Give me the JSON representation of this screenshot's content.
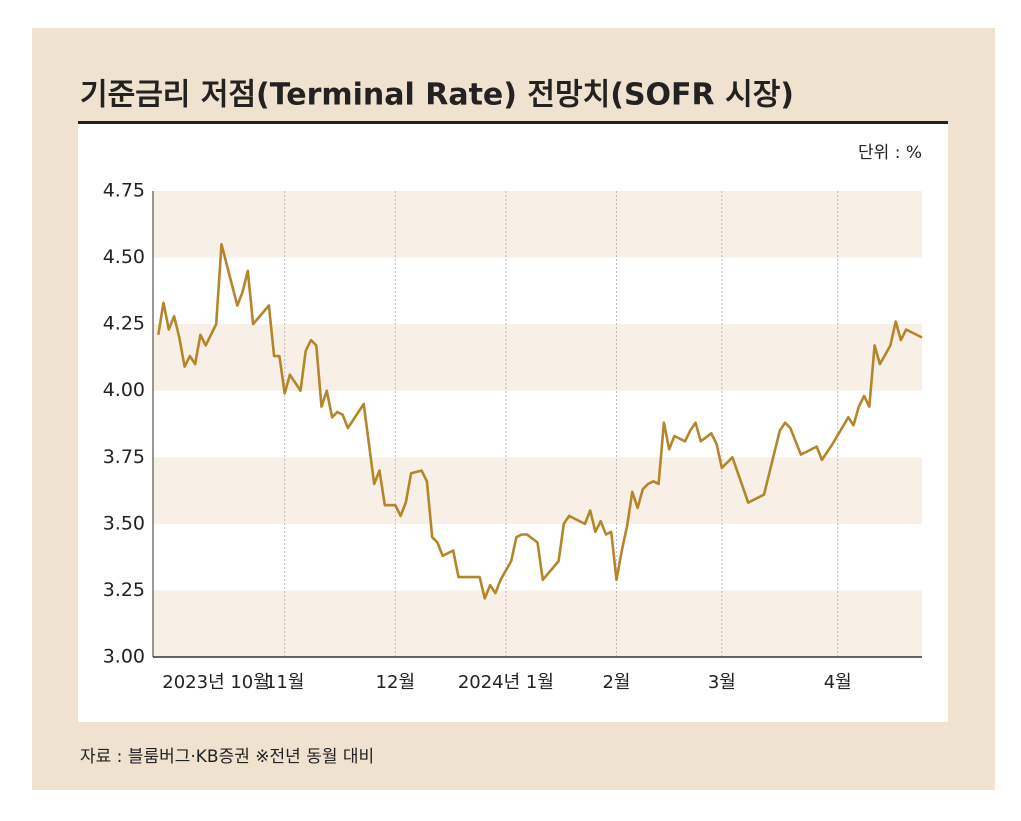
{
  "chart_data": {
    "type": "line",
    "title": "기준금리 저점(Terminal Rate) 전망치(SOFR 시장)",
    "unit": "단위 : %",
    "source": "자료 : 블룸버그·KB증권 ※전년 동월 대비",
    "x": [
      0,
      1,
      2,
      3,
      4,
      5,
      6,
      7,
      8,
      9,
      11,
      12,
      15,
      16,
      17,
      18,
      21,
      22,
      23,
      24,
      25,
      27,
      28,
      29,
      30,
      31,
      32,
      33,
      34,
      35,
      36,
      39,
      41,
      42,
      43,
      45,
      46,
      47,
      48,
      50,
      51,
      52,
      53,
      54,
      56,
      57,
      61,
      62,
      63,
      64,
      65,
      67,
      68,
      69,
      70,
      72,
      73,
      76,
      77,
      78,
      81,
      82,
      83,
      84,
      85,
      86,
      87,
      88,
      89,
      90,
      91,
      92,
      93,
      94,
      95,
      96,
      97,
      98,
      100,
      101,
      102,
      103,
      105,
      106,
      107,
      109,
      112,
      115,
      118,
      119,
      120,
      121,
      122,
      125,
      126,
      128,
      131,
      132,
      133,
      134,
      135,
      136,
      137,
      139,
      140,
      141,
      142,
      145
    ],
    "series": [
      {
        "color": "#b5852a",
        "values": [
          4.21,
          4.33,
          4.23,
          4.28,
          4.2,
          4.09,
          4.13,
          4.1,
          4.21,
          4.17,
          4.25,
          4.55,
          4.32,
          4.37,
          4.45,
          4.25,
          4.32,
          4.13,
          4.13,
          3.99,
          4.06,
          4.0,
          4.15,
          4.19,
          4.17,
          3.94,
          4.0,
          3.9,
          3.92,
          3.91,
          3.86,
          3.95,
          3.65,
          3.7,
          3.57,
          3.57,
          3.53,
          3.58,
          3.69,
          3.7,
          3.66,
          3.45,
          3.43,
          3.38,
          3.4,
          3.3,
          3.3,
          3.22,
          3.27,
          3.24,
          3.29,
          3.36,
          3.45,
          3.46,
          3.46,
          3.43,
          3.29,
          3.36,
          3.5,
          3.53,
          3.5,
          3.55,
          3.47,
          3.51,
          3.46,
          3.47,
          3.29,
          3.4,
          3.49,
          3.62,
          3.56,
          3.63,
          3.65,
          3.66,
          3.65,
          3.88,
          3.78,
          3.83,
          3.81,
          3.85,
          3.88,
          3.81,
          3.84,
          3.8,
          3.71,
          3.75,
          3.58,
          3.61,
          3.85,
          3.88,
          3.86,
          3.81,
          3.76,
          3.79,
          3.74,
          3.8,
          3.9,
          3.87,
          3.94,
          3.98,
          3.94,
          4.17,
          4.1,
          4.17,
          4.26,
          4.19,
          4.23,
          4.2
        ]
      }
    ],
    "xlim": [
      -1,
      145
    ],
    "xticks": [
      {
        "value": 0,
        "label": "2023년 10월"
      },
      {
        "value": 24,
        "label": "11월"
      },
      {
        "value": 45,
        "label": "12월"
      },
      {
        "value": 66,
        "label": "2024년 1월"
      },
      {
        "value": 87,
        "label": "2월"
      },
      {
        "value": 107,
        "label": "3월"
      },
      {
        "value": 129,
        "label": "4월"
      }
    ],
    "ylim": [
      3.0,
      4.75
    ],
    "yticks": [
      {
        "value": 3.0,
        "label": "3.00"
      },
      {
        "value": 3.25,
        "label": "3.25"
      },
      {
        "value": 3.5,
        "label": "3.50"
      },
      {
        "value": 3.75,
        "label": "3.75"
      },
      {
        "value": 4.0,
        "label": "4.00"
      },
      {
        "value": 4.25,
        "label": "4.25"
      },
      {
        "value": 4.5,
        "label": "4.50"
      },
      {
        "value": 4.75,
        "label": "4.75"
      }
    ]
  }
}
